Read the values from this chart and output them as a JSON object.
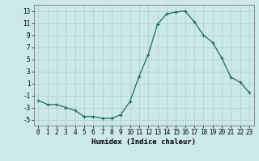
{
  "x": [
    0,
    1,
    2,
    3,
    4,
    5,
    6,
    7,
    8,
    9,
    10,
    11,
    12,
    13,
    14,
    15,
    16,
    17,
    18,
    19,
    20,
    21,
    22,
    23
  ],
  "y": [
    -1.8,
    -2.5,
    -2.5,
    -3.0,
    -3.5,
    -4.5,
    -4.5,
    -4.8,
    -4.8,
    -4.2,
    -2.0,
    2.2,
    5.8,
    10.8,
    12.5,
    12.8,
    13.0,
    11.2,
    9.0,
    7.8,
    5.2,
    2.0,
    1.2,
    -0.5
  ],
  "line_color": "#1a6b5a",
  "marker": "+",
  "markersize": 3,
  "linewidth": 0.9,
  "markeredgewidth": 0.8,
  "xlabel": "Humidex (Indice chaleur)",
  "ylim": [
    -6,
    14
  ],
  "xlim": [
    -0.5,
    23.5
  ],
  "yticks": [
    -5,
    -3,
    -1,
    1,
    3,
    5,
    7,
    9,
    11,
    13
  ],
  "xticks": [
    0,
    1,
    2,
    3,
    4,
    5,
    6,
    7,
    8,
    9,
    10,
    11,
    12,
    13,
    14,
    15,
    16,
    17,
    18,
    19,
    20,
    21,
    22,
    23
  ],
  "bg_color": "#cce8e8",
  "grid_color": "#aacccc",
  "tick_fontsize": 5.5,
  "xlabel_fontsize": 6.5
}
